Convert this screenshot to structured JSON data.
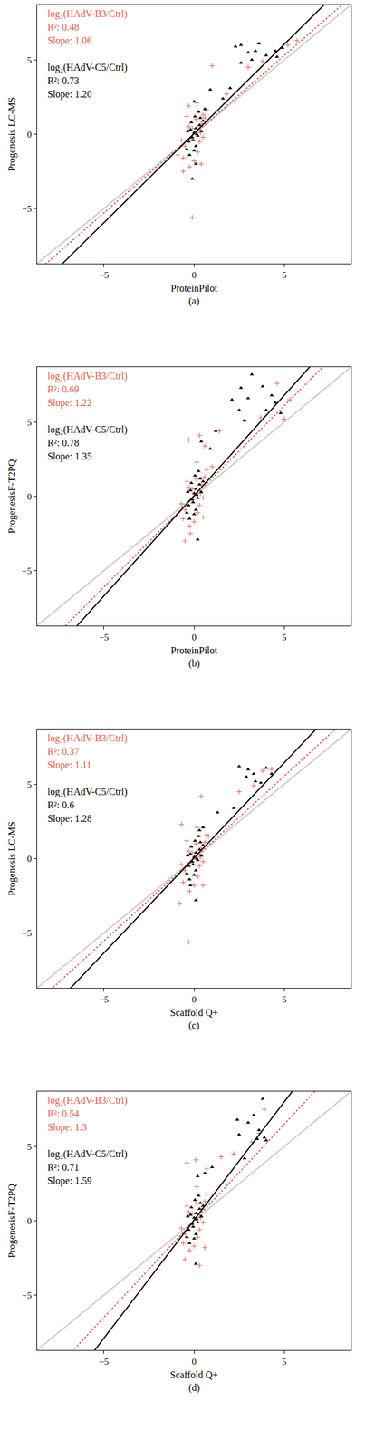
{
  "chart_data": [
    {
      "type": "scatter",
      "panel_label": "(a)",
      "x_label": "ProteinPilot",
      "y_label": "Progenesis LC-MS",
      "xlim": [
        -8.7,
        8.7
      ],
      "ylim": [
        -8.7,
        8.7
      ],
      "xticks": [
        {
          "value": -5,
          "label": "−5"
        },
        0,
        5
      ],
      "yticks": [
        {
          "value": -5,
          "label": "−5"
        },
        0,
        5
      ],
      "grid": false,
      "series": [
        {
          "name": "log₂(HAdV-B3/Ctrl)",
          "color": "#e05a4a",
          "marker": "cross",
          "line_style": "dotted",
          "stats": [
            "R²: 0.48",
            "Slope: 1.06"
          ],
          "fit": {
            "slope": 1.06,
            "intercept": 0.0
          },
          "x": [
            1.0,
            3.0,
            3.8,
            5.2,
            5.7,
            1.8,
            -0.1,
            -0.6,
            -0.9,
            0.4,
            -0.3,
            0.5,
            -0.5,
            -0.3,
            0.2,
            0.4,
            -0.6,
            0.1,
            -0.2,
            0.3,
            0.6,
            -0.4,
            0.0,
            0.5,
            -0.1,
            0.7,
            -0.7,
            0.15,
            -0.25,
            0.35
          ],
          "y": [
            4.6,
            4.5,
            4.9,
            6.0,
            6.3,
            2.7,
            -5.6,
            -2.5,
            -1.4,
            -2.0,
            1.9,
            1.3,
            -0.8,
            0.5,
            -1.2,
            0.7,
            -1.6,
            1.0,
            -0.3,
            -0.5,
            1.1,
            1.2,
            -1.8,
            -0.2,
            0.4,
            1.6,
            -0.4,
            2.1,
            -2.2,
            0.1
          ]
        },
        {
          "name": "log₂(HAdV-C5/Ctrl)",
          "color": "#000000",
          "marker": "triangle",
          "line_style": "solid",
          "stats": [
            "R²: 0.73",
            "Slope: 1.20"
          ],
          "fit": {
            "slope": 1.2,
            "intercept": 0.05
          },
          "x": [
            2.3,
            2.6,
            3.0,
            3.4,
            3.6,
            4.0,
            4.5,
            4.9,
            4.6,
            2.6,
            3.2,
            2.0,
            1.6,
            0.9,
            0.6,
            0.1,
            -0.1,
            0.0,
            -0.3,
            -0.2,
            -0.1,
            0.0,
            0.1,
            0.2,
            0.3,
            -0.4,
            0.05,
            -0.15,
            0.25,
            0.4,
            -0.25,
            0.1,
            0.5,
            -0.05,
            0.15,
            0.35,
            -0.35,
            0.0
          ],
          "y": [
            5.9,
            6.0,
            5.5,
            5.6,
            6.1,
            5.3,
            5.6,
            5.8,
            5.2,
            4.8,
            5.0,
            3.1,
            2.4,
            3.0,
            1.7,
            -2.0,
            -3.0,
            2.2,
            -0.5,
            0.3,
            -0.2,
            0.1,
            0.4,
            -0.1,
            0.6,
            -1.0,
            1.2,
            0.8,
            1.5,
            0.2,
            -1.4,
            -0.8,
            0.9,
            -0.4,
            0.0,
            1.1,
            0.2,
            -1.1
          ]
        }
      ]
    },
    {
      "type": "scatter",
      "panel_label": "(b)",
      "x_label": "ProteinPilot",
      "y_label": "ProgenesisF-T2PQ",
      "xlim": [
        -8.7,
        8.7
      ],
      "ylim": [
        -8.7,
        8.7
      ],
      "xticks": [
        {
          "value": -5,
          "label": "−5"
        },
        0,
        5
      ],
      "yticks": [
        {
          "value": -5,
          "label": "−5"
        },
        0,
        5
      ],
      "grid": false,
      "series": [
        {
          "name": "log₂(HAdV-B3/Ctrl)",
          "color": "#e05a4a",
          "marker": "cross",
          "line_style": "dotted",
          "stats": [
            "R²: 0.69",
            "Slope: 1.22"
          ],
          "fit": {
            "slope": 1.22,
            "intercept": 0.0
          },
          "x": [
            4.6,
            5.3,
            5.0,
            3.7,
            1.4,
            0.3,
            -0.3,
            0.6,
            -0.2,
            -0.5,
            0.5,
            1.0,
            -0.5,
            -0.3,
            0.2,
            0.4,
            -0.6,
            0.1,
            -0.2,
            0.3,
            0.6,
            -0.4,
            0.0,
            0.5,
            -0.1,
            0.7,
            -0.7,
            0.15,
            -0.25,
            0.35
          ],
          "y": [
            7.6,
            6.5,
            5.2,
            5.3,
            4.4,
            4.1,
            3.8,
            3.4,
            -2.5,
            -3.0,
            -1.4,
            2.0,
            -0.9,
            0.6,
            -1.1,
            0.8,
            -1.5,
            1.2,
            -0.3,
            -0.6,
            1.3,
            1.0,
            -1.7,
            -0.1,
            0.5,
            1.8,
            -0.5,
            2.3,
            -2.0,
            0.2
          ]
        },
        {
          "name": "log₂(HAdV-C5/Ctrl)",
          "color": "#000000",
          "marker": "triangle",
          "line_style": "solid",
          "stats": [
            "R²: 0.78",
            "Slope: 1.35"
          ],
          "fit": {
            "slope": 1.35,
            "intercept": 0.05
          },
          "x": [
            3.2,
            2.6,
            3.8,
            4.5,
            2.1,
            3.0,
            4.0,
            4.8,
            2.5,
            0.4,
            0.9,
            1.2,
            0.2,
            4.3,
            2.8,
            -0.3,
            -0.2,
            -0.1,
            0.0,
            0.1,
            0.2,
            0.3,
            -0.4,
            0.05,
            -0.15,
            0.25,
            0.4,
            -0.25,
            0.1,
            0.5,
            -0.05,
            0.15,
            0.35,
            -0.35,
            0.0
          ],
          "y": [
            8.2,
            7.3,
            7.4,
            6.3,
            6.5,
            6.6,
            5.8,
            5.6,
            5.8,
            3.7,
            3.2,
            4.4,
            -2.9,
            6.8,
            5.1,
            -0.6,
            0.4,
            -0.2,
            0.2,
            0.5,
            -0.1,
            0.8,
            -1.1,
            1.4,
            0.9,
            1.7,
            0.3,
            -1.5,
            -0.9,
            1.0,
            -0.4,
            0.1,
            1.2,
            0.3,
            -1.2
          ]
        }
      ]
    },
    {
      "type": "scatter",
      "panel_label": "(c)",
      "x_label": "Scaffold Q+",
      "y_label": "Progenesis LC-MS",
      "xlim": [
        -8.7,
        8.7
      ],
      "ylim": [
        -8.7,
        8.7
      ],
      "xticks": [
        {
          "value": -5,
          "label": "−5"
        },
        0,
        5
      ],
      "yticks": [
        {
          "value": -5,
          "label": "−5"
        },
        0,
        5
      ],
      "grid": false,
      "series": [
        {
          "name": "log₂(HAdV-B3/Ctrl)",
          "color": "#e05a4a",
          "marker": "cross",
          "line_style": "dotted",
          "stats": [
            "R²: 0.37",
            "Slope: 1.11"
          ],
          "fit": {
            "slope": 1.11,
            "intercept": 0.0
          },
          "x": [
            0.4,
            2.5,
            3.3,
            3.8,
            4.3,
            -0.3,
            -0.8,
            0.5,
            0.8,
            -0.7,
            -0.5,
            -0.3,
            0.2,
            0.4,
            -0.6,
            0.1,
            -0.2,
            0.3,
            0.6,
            -0.4,
            0.0,
            0.5,
            -0.1,
            0.7,
            -0.7,
            0.15,
            -0.25,
            0.35
          ],
          "y": [
            4.2,
            4.5,
            4.9,
            5.9,
            6.0,
            -5.6,
            -3.0,
            -1.8,
            1.5,
            2.3,
            -0.8,
            0.5,
            -1.2,
            0.7,
            -1.6,
            1.0,
            -0.3,
            -0.5,
            1.1,
            1.2,
            -1.8,
            -0.2,
            0.4,
            1.6,
            -0.4,
            2.1,
            -2.2,
            0.1
          ]
        },
        {
          "name": "log₂(HAdV-C5/Ctrl)",
          "color": "#000000",
          "marker": "triangle",
          "line_style": "solid",
          "stats": [
            "R²: 0.6",
            "Slope: 1.28"
          ],
          "fit": {
            "slope": 1.28,
            "intercept": 0.05
          },
          "x": [
            2.5,
            3.0,
            3.3,
            3.4,
            3.7,
            4.0,
            4.3,
            2.2,
            1.3,
            0.5,
            0.3,
            0.1,
            -0.2,
            2.9,
            -0.3,
            -0.2,
            -0.1,
            0.0,
            0.1,
            0.2,
            0.3,
            -0.4,
            0.05,
            -0.15,
            0.25,
            0.4,
            -0.25,
            0.1,
            0.5,
            -0.05,
            0.15,
            0.35,
            -0.35,
            0.0
          ],
          "y": [
            6.2,
            6.0,
            5.7,
            5.2,
            5.1,
            6.1,
            5.7,
            3.4,
            3.1,
            2.1,
            1.9,
            -2.8,
            -1.8,
            5.5,
            -0.5,
            0.3,
            -0.2,
            0.1,
            0.4,
            -0.1,
            0.6,
            -1.0,
            1.2,
            0.8,
            1.5,
            0.2,
            -1.4,
            -0.8,
            0.9,
            -0.4,
            0.0,
            1.1,
            0.2,
            -1.1
          ]
        }
      ]
    },
    {
      "type": "scatter",
      "panel_label": "(d)",
      "x_label": "Scaffold Q+",
      "y_label": "ProgenesisF-T2PQ",
      "xlim": [
        -8.7,
        8.7
      ],
      "ylim": [
        -8.7,
        8.7
      ],
      "xticks": [
        {
          "value": -5,
          "label": "−5"
        },
        0,
        5
      ],
      "yticks": [
        {
          "value": -5,
          "label": "−5"
        },
        0,
        5
      ],
      "grid": false,
      "series": [
        {
          "name": "log₂(HAdV-B3/Ctrl)",
          "color": "#e05a4a",
          "marker": "cross",
          "line_style": "dotted",
          "stats": [
            "R²: 0.54",
            "Slope: 1.3"
          ],
          "fit": {
            "slope": 1.3,
            "intercept": 0.0
          },
          "x": [
            3.9,
            3.6,
            3.2,
            2.2,
            1.5,
            0.1,
            0.7,
            -0.4,
            -0.5,
            0.3,
            0.6,
            -0.5,
            -0.3,
            0.2,
            0.4,
            -0.6,
            0.1,
            -0.2,
            0.3,
            0.6,
            -0.4,
            0.0,
            0.5,
            -0.1,
            0.7,
            -0.7,
            0.15,
            -0.25,
            0.35
          ],
          "y": [
            7.5,
            5.9,
            5.3,
            4.5,
            4.3,
            4.1,
            3.5,
            3.9,
            -2.6,
            -3.0,
            -1.8,
            -0.9,
            0.6,
            -1.1,
            0.8,
            -1.5,
            1.2,
            -0.3,
            -0.6,
            1.3,
            1.0,
            -1.7,
            -0.1,
            0.5,
            1.8,
            -0.5,
            2.3,
            -2.0,
            0.2
          ]
        },
        {
          "name": "log₂(HAdV-C5/Ctrl)",
          "color": "#000000",
          "marker": "triangle",
          "line_style": "solid",
          "stats": [
            "R²: 0.71",
            "Slope: 1.59"
          ],
          "fit": {
            "slope": 1.59,
            "intercept": 0.05
          },
          "x": [
            3.8,
            3.3,
            3.0,
            2.4,
            2.5,
            3.5,
            3.9,
            3.6,
            1.0,
            0.6,
            0.2,
            0.1,
            2.8,
            4.0,
            -0.3,
            -0.2,
            -0.1,
            0.0,
            0.1,
            0.2,
            0.3,
            -0.4,
            0.05,
            -0.15,
            0.25,
            0.4,
            -0.25,
            0.1,
            0.5,
            -0.05,
            0.15,
            0.35,
            -0.35,
            0.0
          ],
          "y": [
            8.2,
            7.1,
            6.6,
            6.8,
            5.8,
            5.5,
            5.6,
            6.1,
            3.6,
            3.2,
            3.0,
            -2.9,
            4.2,
            5.4,
            -0.6,
            0.4,
            -0.2,
            0.2,
            0.5,
            -0.1,
            0.8,
            -1.1,
            1.4,
            0.9,
            1.7,
            0.3,
            -1.5,
            -0.9,
            1.0,
            -0.4,
            0.1,
            1.2,
            0.3,
            -1.2
          ]
        }
      ]
    }
  ]
}
